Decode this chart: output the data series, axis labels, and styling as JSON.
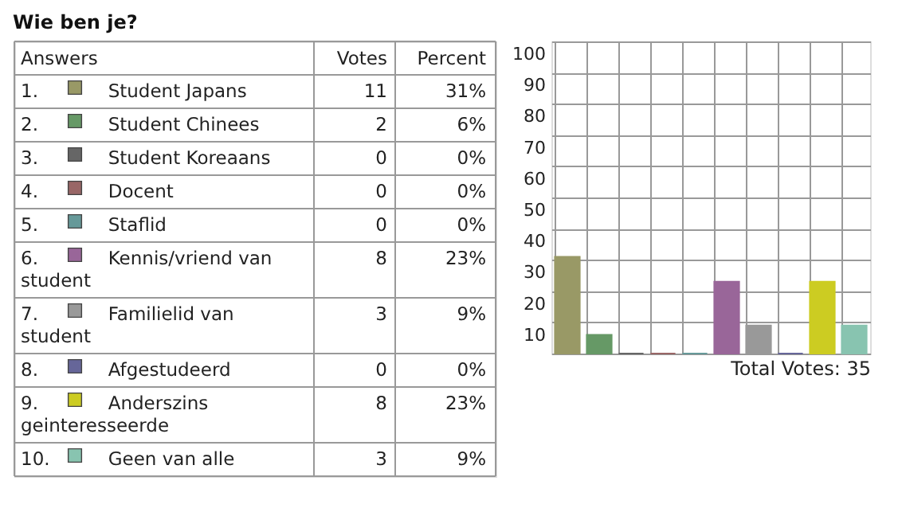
{
  "chart_data": [
    {
      "type": "other",
      "title": "Wie ben je?",
      "xlabel": "Answers",
      "data_labels": true,
      "categories": [
        "1. Student Japans",
        "2. Student Chinees",
        "3. Student Koreaans",
        "4. Docent",
        "5. Staflid",
        "6. Kennis/vriend van student",
        "7. Familielid van student",
        "8. Afgestudeerd",
        "9. Anderszins geinteresseerde",
        "10. Geen van alle"
      ],
      "colors": [
        "#999966",
        "#669966",
        "#666666",
        "#996666",
        "#669999",
        "#996699",
        "#999999",
        "#666699",
        "#cccc22",
        "#88c4b0"
      ],
      "series": [
        {
          "name": "Votes",
          "values": [
            11,
            2,
            0,
            0,
            0,
            8,
            3,
            0,
            8,
            3
          ]
        },
        {
          "name": "Percent",
          "values": [
            31,
            6,
            0,
            0,
            0,
            23,
            9,
            0,
            23,
            9
          ],
          "value_labels": [
            "31%",
            "6%",
            "0%",
            "0%",
            "0%",
            "23%",
            "9%",
            "0%",
            "23%",
            "9%"
          ]
        }
      ]
    },
    {
      "type": "bar",
      "categories": [
        null,
        null,
        null,
        null,
        null,
        null,
        null,
        null,
        null,
        null
      ],
      "values": [
        31,
        6,
        0,
        0,
        0,
        23,
        9,
        0,
        23,
        9
      ],
      "colors": [
        "#999966",
        "#669966",
        "#666666",
        "#996666",
        "#669999",
        "#996699",
        "#999999",
        "#666699",
        "#cccc22",
        "#88c4b0"
      ],
      "ylim": [
        0,
        100
      ],
      "yticks": [
        10,
        20,
        30,
        40,
        50,
        60,
        70,
        80,
        90,
        100
      ],
      "grid": true,
      "tick_labels": "y",
      "annotations": [
        "Total Votes: 35"
      ]
    }
  ]
}
